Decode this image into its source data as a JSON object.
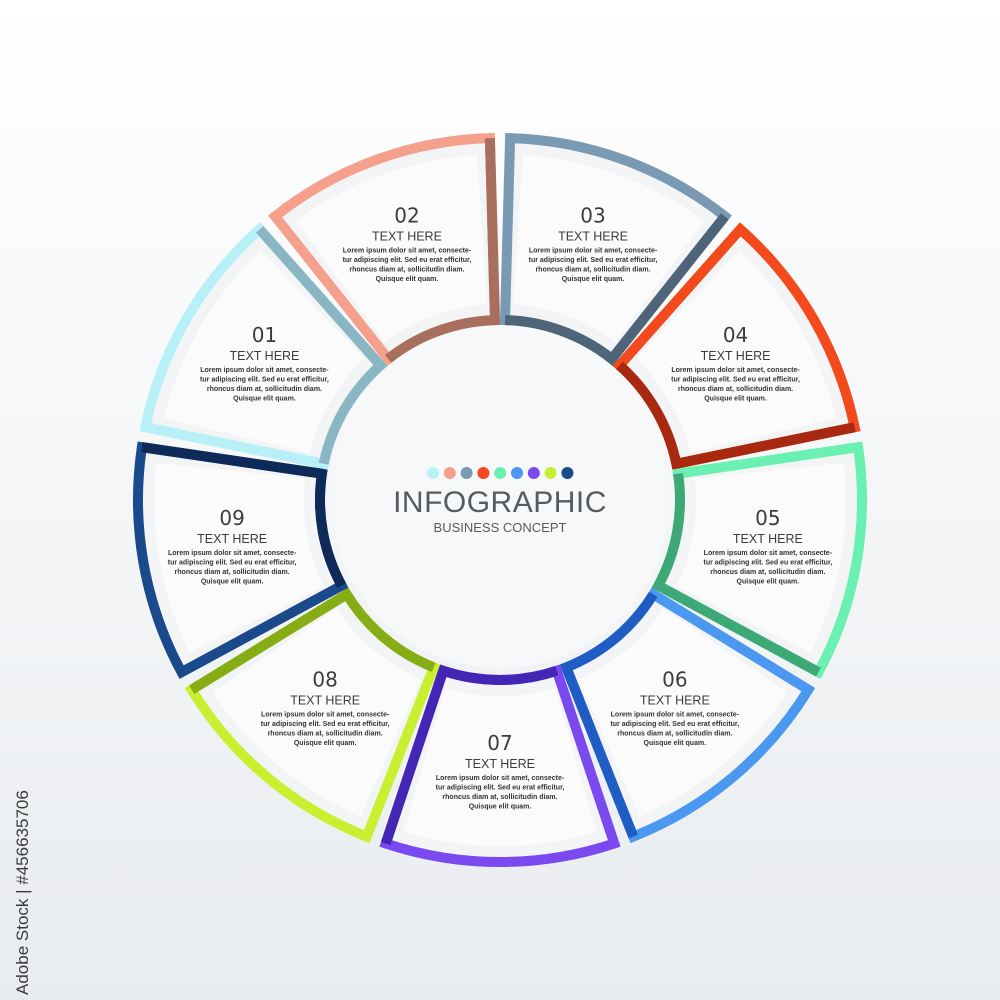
{
  "center": {
    "title": "INFOGRAPHIC",
    "subtitle": "BUSINESS CONCEPT"
  },
  "dots": [
    "#b8f0f8",
    "#f4a08c",
    "#7a9ab4",
    "#f24a1c",
    "#6af0b0",
    "#4a98f0",
    "#7a4af0",
    "#c8f030",
    "#1a4a8c"
  ],
  "segments": [
    {
      "number": "03",
      "heading": "TEXT HERE",
      "lines": [
        "Lorem ipsum dolor sit amet, consecte-",
        "tur adipiscing elit. Sed eu erat efficitur,",
        "rhoncus diam at, sollicitudin diam.",
        "Quisque elit quam."
      ],
      "color": "#7a9ab4",
      "dark": "#4e6478"
    },
    {
      "number": "04",
      "heading": "TEXT HERE",
      "lines": [
        "Lorem ipsum dolor sit amet, consecte-",
        "tur adipiscing elit. Sed eu erat efficitur,",
        "rhoncus diam at, sollicitudin diam.",
        "Quisque elit quam."
      ],
      "color": "#f24a1c",
      "dark": "#a82810"
    },
    {
      "number": "05",
      "heading": "TEXT HERE",
      "lines": [
        "Lorem ipsum dolor sit amet, consecte-",
        "tur adipiscing elit. Sed eu erat efficitur,",
        "rhoncus diam at, sollicitudin diam.",
        "Quisque elit quam."
      ],
      "color": "#6af0b0",
      "dark": "#3ea876"
    },
    {
      "number": "06",
      "heading": "TEXT HERE",
      "lines": [
        "Lorem ipsum dolor sit amet, consecte-",
        "tur adipiscing elit. Sed eu erat efficitur,",
        "rhoncus diam at, sollicitudin diam.",
        "Quisque elit quam."
      ],
      "color": "#4a98f0",
      "dark": "#1f5cc4"
    },
    {
      "number": "07",
      "heading": "TEXT HERE",
      "lines": [
        "Lorem ipsum dolor sit amet, consecte-",
        "tur adipiscing elit. Sed eu erat efficitur,",
        "rhoncus diam at, sollicitudin diam.",
        "Quisque elit quam."
      ],
      "color": "#7a4af0",
      "dark": "#4426b4"
    },
    {
      "number": "08",
      "heading": "TEXT HERE",
      "lines": [
        "Lorem ipsum dolor sit amet, consecte-",
        "tur adipiscing elit. Sed eu erat efficitur,",
        "rhoncus diam at, sollicitudin diam.",
        "Quisque elit quam."
      ],
      "color": "#c8f030",
      "dark": "#86ac16"
    },
    {
      "number": "09",
      "heading": "TEXT HERE",
      "lines": [
        "Lorem ipsum dolor sit amet, consecte-",
        "tur adipiscing elit. Sed eu erat efficitur,",
        "rhoncus diam at, sollicitudin diam.",
        "Quisque elit quam."
      ],
      "color": "#1a4a8c",
      "dark": "#0e2a58"
    },
    {
      "number": "01",
      "heading": "TEXT HERE",
      "lines": [
        "Lorem ipsum dolor sit amet, consecte-",
        "tur adipiscing elit. Sed eu erat efficitur,",
        "rhoncus diam at, sollicitudin diam.",
        "Quisque elit quam."
      ],
      "color": "#b8f0f8",
      "dark": "#8ab6c4"
    },
    {
      "number": "02",
      "heading": "TEXT HERE",
      "lines": [
        "Lorem ipsum dolor sit amet, consecte-",
        "tur adipiscing elit. Sed eu erat efficitur,",
        "rhoncus diam at, sollicitudin diam.",
        "Quisque elit quam."
      ],
      "color": "#f4a08c",
      "dark": "#a86e5e"
    }
  ],
  "watermark": "Adobe Stock | #456635706"
}
